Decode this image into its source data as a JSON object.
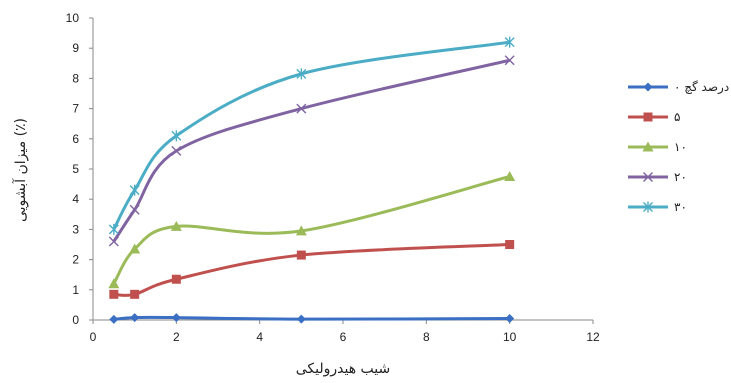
{
  "chart_data": {
    "type": "line",
    "title": "",
    "xlabel": "شیب هیدرولیکی",
    "ylabel": "میزان آبشویی (٪)",
    "xlim": [
      0,
      12
    ],
    "ylim": [
      0,
      10
    ],
    "x_ticks": [
      "0",
      "2",
      "4",
      "6",
      "8",
      "10",
      "12"
    ],
    "y_ticks": [
      "0",
      "1",
      "2",
      "3",
      "4",
      "5",
      "6",
      "7",
      "8",
      "9",
      "10"
    ],
    "grid": false,
    "legend_position": "right",
    "x": [
      0.5,
      1,
      2,
      5,
      10
    ],
    "series": [
      {
        "name": "درصد گچ ۰",
        "values": [
          0.02,
          0.08,
          0.08,
          0.03,
          0.05
        ],
        "color": "#3a6fc4",
        "marker": "diamond"
      },
      {
        "name": "۵",
        "values": [
          0.85,
          0.85,
          1.35,
          2.15,
          2.5
        ],
        "color": "#c0504d",
        "marker": "square"
      },
      {
        "name": "۱۰",
        "values": [
          1.2,
          2.35,
          3.1,
          2.95,
          4.75
        ],
        "color": "#9bbb59",
        "marker": "triangle"
      },
      {
        "name": "۲۰",
        "values": [
          2.6,
          3.65,
          5.6,
          7.0,
          8.6
        ],
        "color": "#8064a2",
        "marker": "x"
      },
      {
        "name": "۳۰",
        "values": [
          3.0,
          4.3,
          6.1,
          8.15,
          9.2
        ],
        "color": "#4bacc6",
        "marker": "asterisk"
      }
    ]
  }
}
